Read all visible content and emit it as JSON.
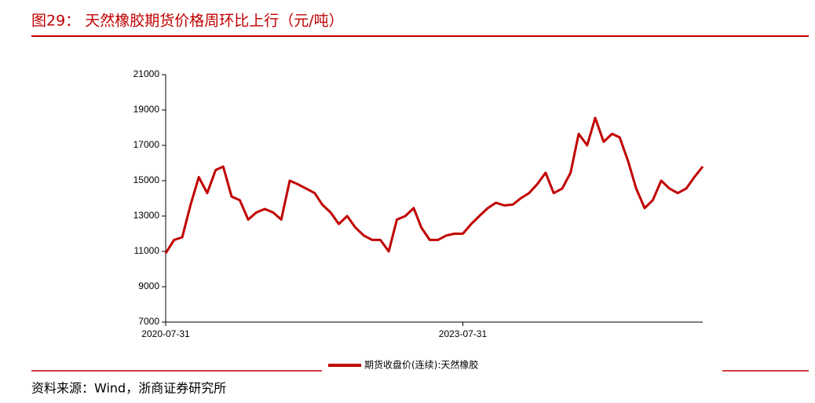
{
  "title": "图29：  天然橡胶期货价格周环比上行（元/吨）",
  "source": "资料来源：Wind，浙商证券研究所",
  "chart_data": {
    "type": "line",
    "x": [
      "2020-07-31",
      "2020-08-31",
      "2020-09-30",
      "2020-10-31",
      "2020-11-30",
      "2020-12-31",
      "2021-01-31",
      "2021-02-28",
      "2021-03-31",
      "2021-04-30",
      "2021-05-31",
      "2021-06-30",
      "2021-07-31",
      "2021-08-31",
      "2021-09-30",
      "2021-10-31",
      "2021-11-30",
      "2021-12-31",
      "2022-01-31",
      "2022-02-28",
      "2022-03-31",
      "2022-04-30",
      "2022-05-31",
      "2022-06-30",
      "2022-07-31",
      "2022-08-31",
      "2022-09-30",
      "2022-10-31",
      "2022-11-30",
      "2022-12-31",
      "2023-01-31",
      "2023-02-28",
      "2023-03-31",
      "2023-04-30",
      "2023-05-31",
      "2023-06-30",
      "2023-07-31",
      "2023-08-31",
      "2023-09-30",
      "2023-10-31",
      "2023-11-30",
      "2023-12-31",
      "2024-01-31",
      "2024-02-29",
      "2024-03-31",
      "2024-04-30",
      "2024-05-31",
      "2024-06-30",
      "2024-07-31",
      "2024-08-31",
      "2024-09-30",
      "2024-10-31",
      "2024-11-30",
      "2024-12-31",
      "2025-01-31",
      "2025-02-28",
      "2025-03-31",
      "2025-04-30",
      "2025-05-31",
      "2025-06-30",
      "2025-07-31",
      "2025-08-31",
      "2025-09-30",
      "2025-10-31",
      "2025-11-30",
      "2025-12-31"
    ],
    "series": [
      {
        "name": "期货收盘价(连续):天然橡胶",
        "color": "#c00000",
        "values": [
          10900,
          11650,
          11800,
          13650,
          15200,
          14300,
          15600,
          15800,
          14100,
          13900,
          12800,
          13200,
          13400,
          13200,
          12800,
          15000,
          14800,
          14550,
          14300,
          13650,
          13200,
          12550,
          13000,
          12350,
          11900,
          11650,
          11650,
          11000,
          12800,
          13000,
          13450,
          12350,
          11650,
          11650,
          11900,
          12000,
          12000,
          12550,
          13000,
          13450,
          13750,
          13600,
          13650,
          14000,
          14300,
          14800,
          15450,
          14300,
          14550,
          15450,
          17650,
          17000,
          18550,
          17200,
          17650,
          17450,
          16100,
          14550,
          13450,
          13900,
          15000,
          14550,
          14300,
          14550,
          15200,
          15800
        ]
      }
    ],
    "xlim": [
      "2020-07-31",
      "2025-12-31"
    ],
    "xticks": [
      "2020-07-31",
      "2023-07-31"
    ],
    "ylim": [
      7000,
      21000
    ],
    "yticks": [
      7000,
      9000,
      11000,
      13000,
      15000,
      17000,
      19000,
      21000
    ]
  }
}
